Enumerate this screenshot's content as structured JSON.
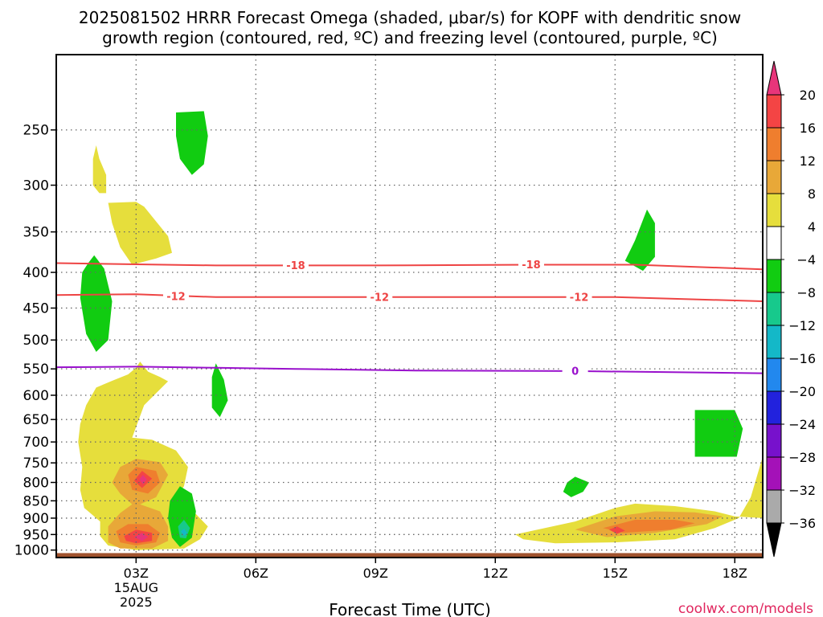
{
  "chart_data": {
    "type": "heatmap",
    "title_line1": "2025081502 HRRR Forecast Omega (shaded, μbar/s) for KOPF with dendritic snow",
    "title_line2": "growth region (contoured, red, ºC) and freezing level (contoured, purple, ºC)",
    "xlabel": "Forecast Time (UTC)",
    "ylabel": "",
    "x_ticks": [
      "03Z",
      "06Z",
      "09Z",
      "12Z",
      "15Z",
      "18Z"
    ],
    "date_label": [
      "15AUG",
      "2025"
    ],
    "xlim_hours_utc": [
      1.0,
      18.7
    ],
    "y_ticks": [
      250,
      300,
      350,
      400,
      450,
      500,
      550,
      600,
      650,
      700,
      750,
      800,
      850,
      900,
      950,
      1000
    ],
    "ylim_hpa": [
      1025,
      195
    ],
    "y_scale": "log pressure",
    "grid": true,
    "credit": "coolwx.com/models",
    "colorbar": {
      "labels": [
        "20",
        "16",
        "12",
        "8",
        "4",
        "−4",
        "−8",
        "−12",
        "−16",
        "−20",
        "−24",
        "−28",
        "−32",
        "−36"
      ],
      "colors": [
        "#e8357a",
        "#f44444",
        "#ef7e2e",
        "#e8a838",
        "#e6de3c",
        "#ffffff",
        "#11cc11",
        "#17c98c",
        "#14b8c8",
        "#2288ee",
        "#2222dd",
        "#7711cc",
        "#a411b8",
        "#aaaaaa",
        "#000000"
      ]
    },
    "contours": [
      {
        "name": "-18",
        "color": "#ee4444",
        "points": [
          [
            1.0,
            388
          ],
          [
            5,
            391
          ],
          [
            9,
            391
          ],
          [
            13,
            390
          ],
          [
            15.5,
            390
          ],
          [
            18.7,
            396
          ]
        ],
        "labels": [
          [
            7.0,
            391
          ],
          [
            12.9,
            390
          ]
        ]
      },
      {
        "name": "-12",
        "color": "#ee4444",
        "points": [
          [
            1.0,
            431
          ],
          [
            3,
            430
          ],
          [
            5,
            434
          ],
          [
            9,
            434
          ],
          [
            12,
            434
          ],
          [
            15,
            434
          ],
          [
            18.7,
            440
          ]
        ],
        "labels": [
          [
            4.0,
            433
          ],
          [
            9.1,
            434
          ],
          [
            14.1,
            434
          ]
        ]
      },
      {
        "name": "0",
        "color": "#9911cc",
        "points": [
          [
            1.0,
            547
          ],
          [
            3,
            546
          ],
          [
            5,
            548
          ],
          [
            7,
            550
          ],
          [
            10,
            553
          ],
          [
            14,
            554
          ],
          [
            18.7,
            558
          ]
        ],
        "labels": [
          [
            14.0,
            554
          ]
        ]
      }
    ],
    "omega_regions": [
      {
        "name": "omega-4-to-8-upper",
        "range": "4 to 8",
        "color": "#e6de3c",
        "points": [
          [
            1.92,
            275
          ],
          [
            2.0,
            263
          ],
          [
            2.08,
            275
          ],
          [
            2.25,
            290
          ],
          [
            2.25,
            308
          ],
          [
            2.08,
            308
          ],
          [
            1.92,
            300
          ]
        ]
      },
      {
        "name": "omega-4-to-8-mid",
        "range": "4 to 8",
        "color": "#e6de3c",
        "points": [
          [
            2.3,
            318
          ],
          [
            3.0,
            317
          ],
          [
            3.2,
            322
          ],
          [
            3.8,
            355
          ],
          [
            3.9,
            375
          ],
          [
            3.5,
            382
          ],
          [
            2.9,
            390
          ],
          [
            2.6,
            368
          ],
          [
            2.4,
            340
          ]
        ]
      },
      {
        "name": "omega-4-to-8-low-left",
        "range": "4 to 8",
        "color": "#e6de3c",
        "points": [
          [
            1.75,
            620
          ],
          [
            2.0,
            585
          ],
          [
            2.4,
            572
          ],
          [
            2.8,
            560
          ],
          [
            3.0,
            548
          ],
          [
            3.1,
            537
          ],
          [
            3.3,
            555
          ],
          [
            3.6,
            565
          ],
          [
            3.8,
            573
          ],
          [
            3.2,
            620
          ],
          [
            2.9,
            690
          ],
          [
            3.4,
            695
          ],
          [
            4.0,
            720
          ],
          [
            4.3,
            760
          ],
          [
            4.2,
            810
          ],
          [
            3.9,
            860
          ],
          [
            4.5,
            888
          ],
          [
            4.8,
            925
          ],
          [
            4.6,
            965
          ],
          [
            4.2,
            995
          ],
          [
            3.0,
            1000
          ],
          [
            2.3,
            985
          ],
          [
            2.1,
            955
          ],
          [
            2.1,
            910
          ],
          [
            1.7,
            870
          ],
          [
            1.6,
            820
          ],
          [
            1.65,
            760
          ],
          [
            1.55,
            700
          ],
          [
            1.6,
            660
          ]
        ]
      },
      {
        "name": "omega-4-to-8-low-right",
        "range": "4 to 8",
        "color": "#e6de3c",
        "points": [
          [
            12.5,
            950
          ],
          [
            14.0,
            910
          ],
          [
            15.0,
            870
          ],
          [
            15.5,
            858
          ],
          [
            16.5,
            865
          ],
          [
            17.5,
            880
          ],
          [
            18.0,
            895
          ],
          [
            18.7,
            900
          ],
          [
            18.7,
            860
          ],
          [
            18.7,
            735
          ],
          [
            18.4,
            840
          ],
          [
            18.1,
            900
          ],
          [
            17.5,
            930
          ],
          [
            16.5,
            965
          ],
          [
            15.0,
            975
          ],
          [
            13.5,
            978
          ],
          [
            12.7,
            965
          ]
        ]
      },
      {
        "name": "omega-8-to-12-low-left",
        "range": "8 to 12",
        "color": "#e8a838",
        "points": [
          [
            2.6,
            760
          ],
          [
            3.0,
            740
          ],
          [
            3.6,
            748
          ],
          [
            3.8,
            780
          ],
          [
            3.5,
            840
          ],
          [
            3.1,
            860
          ],
          [
            3.6,
            880
          ],
          [
            3.8,
            925
          ],
          [
            3.8,
            970
          ],
          [
            3.4,
            995
          ],
          [
            2.6,
            995
          ],
          [
            2.3,
            975
          ],
          [
            2.3,
            925
          ],
          [
            2.6,
            885
          ],
          [
            2.9,
            860
          ],
          [
            2.6,
            830
          ],
          [
            2.4,
            800
          ]
        ]
      },
      {
        "name": "omega-8-to-12-low-right",
        "range": "8 to 12",
        "color": "#e8a838",
        "points": [
          [
            14.0,
            935
          ],
          [
            15.0,
            895
          ],
          [
            16.0,
            880
          ],
          [
            17.0,
            883
          ],
          [
            17.7,
            895
          ],
          [
            17.3,
            918
          ],
          [
            16.0,
            945
          ],
          [
            14.8,
            958
          ]
        ]
      },
      {
        "name": "omega-12-to-16-left-upper",
        "range": "12 to 16",
        "color": "#ef7e2e",
        "points": [
          [
            2.8,
            780
          ],
          [
            3.0,
            760
          ],
          [
            3.5,
            770
          ],
          [
            3.6,
            800
          ],
          [
            3.3,
            830
          ],
          [
            2.9,
            820
          ]
        ]
      },
      {
        "name": "omega-12-to-16-left-lower",
        "range": "12 to 16",
        "color": "#ef7e2e",
        "points": [
          [
            2.5,
            940
          ],
          [
            2.8,
            918
          ],
          [
            3.3,
            918
          ],
          [
            3.6,
            945
          ],
          [
            3.5,
            975
          ],
          [
            3.0,
            985
          ],
          [
            2.6,
            975
          ]
        ]
      },
      {
        "name": "omega-12-to-16-right",
        "range": "12 to 16",
        "color": "#ef7e2e",
        "points": [
          [
            14.7,
            930
          ],
          [
            15.5,
            905
          ],
          [
            16.5,
            905
          ],
          [
            17.0,
            915
          ],
          [
            16.4,
            935
          ],
          [
            15.2,
            945
          ]
        ]
      },
      {
        "name": "omega-16-to-20-left-upper",
        "range": "16 to 20",
        "color": "#f44444",
        "points": [
          [
            2.95,
            795
          ],
          [
            3.15,
            770
          ],
          [
            3.4,
            790
          ],
          [
            3.15,
            815
          ]
        ]
      },
      {
        "name": "omega-16-to-20-left-lower",
        "range": "16 to 20",
        "color": "#f44444",
        "points": [
          [
            2.7,
            955
          ],
          [
            3.0,
            935
          ],
          [
            3.4,
            945
          ],
          [
            3.4,
            970
          ],
          [
            3.0,
            978
          ],
          [
            2.75,
            970
          ]
        ]
      },
      {
        "name": "omega-16-to-20-right",
        "range": "16 to 20",
        "color": "#f44444",
        "points": [
          [
            14.85,
            935
          ],
          [
            15.05,
            925
          ],
          [
            15.25,
            938
          ],
          [
            15.05,
            948
          ]
        ]
      },
      {
        "name": "omega-over-20-left-upper",
        "range": "> 20",
        "color": "#e8357a",
        "points": [
          [
            3.08,
            792
          ],
          [
            3.17,
            780
          ],
          [
            3.27,
            792
          ],
          [
            3.17,
            805
          ]
        ]
      },
      {
        "name": "omega-over-20-left-lower",
        "range": "> 20",
        "color": "#e8357a",
        "points": [
          [
            2.95,
            958
          ],
          [
            3.15,
            945
          ],
          [
            3.3,
            958
          ],
          [
            3.15,
            970
          ]
        ]
      },
      {
        "name": "omega-minus-4-to-minus-8-top",
        "range": "-4 to -8",
        "color": "#11cc11",
        "points": [
          [
            4.0,
            236
          ],
          [
            4.7,
            235
          ],
          [
            4.8,
            255
          ],
          [
            4.7,
            280
          ],
          [
            4.4,
            290
          ],
          [
            4.1,
            275
          ],
          [
            4.0,
            255
          ]
        ]
      },
      {
        "name": "omega-minus-4-to-minus-8-upper-left",
        "range": "-4 to -8",
        "color": "#11cc11",
        "points": [
          [
            1.8,
            388
          ],
          [
            1.95,
            378
          ],
          [
            2.2,
            395
          ],
          [
            2.4,
            440
          ],
          [
            2.3,
            500
          ],
          [
            2.0,
            520
          ],
          [
            1.75,
            490
          ],
          [
            1.6,
            435
          ],
          [
            1.65,
            400
          ]
        ]
      },
      {
        "name": "omega-minus-4-to-minus-8-mid",
        "range": "-4 to -8",
        "color": "#11cc11",
        "points": [
          [
            4.9,
            565
          ],
          [
            5.0,
            540
          ],
          [
            5.2,
            570
          ],
          [
            5.3,
            610
          ],
          [
            5.1,
            645
          ],
          [
            4.9,
            625
          ],
          [
            4.9,
            590
          ]
        ]
      },
      {
        "name": "omega-minus-4-to-minus-8-low-left",
        "range": "-4 to -8",
        "color": "#11cc11",
        "points": [
          [
            3.85,
            850
          ],
          [
            4.1,
            810
          ],
          [
            4.4,
            830
          ],
          [
            4.5,
            880
          ],
          [
            4.4,
            960
          ],
          [
            4.1,
            990
          ],
          [
            3.9,
            960
          ],
          [
            3.8,
            900
          ]
        ]
      },
      {
        "name": "omega-minus-4-to-minus-8-right-upper",
        "range": "-4 to -8",
        "color": "#11cc11",
        "points": [
          [
            15.5,
            360
          ],
          [
            15.8,
            325
          ],
          [
            16.0,
            340
          ],
          [
            16.0,
            380
          ],
          [
            15.7,
            398
          ],
          [
            15.25,
            385
          ],
          [
            15.4,
            370
          ]
        ]
      },
      {
        "name": "omega-minus-4-to-minus-8-right-low",
        "range": "-4 to -8",
        "color": "#11cc11",
        "points": [
          [
            13.8,
            800
          ],
          [
            14.0,
            785
          ],
          [
            14.35,
            800
          ],
          [
            14.2,
            825
          ],
          [
            13.9,
            840
          ],
          [
            13.7,
            825
          ]
        ]
      },
      {
        "name": "omega-minus-4-to-minus-8-right-box",
        "range": "-4 to -8",
        "color": "#11cc11",
        "points": [
          [
            17.0,
            630
          ],
          [
            18.0,
            630
          ],
          [
            18.2,
            670
          ],
          [
            18.05,
            735
          ],
          [
            17.0,
            735
          ]
        ]
      },
      {
        "name": "omega-minus-8-to-minus-12-low-left",
        "range": "-8 to -12",
        "color": "#17c98c",
        "points": [
          [
            4.05,
            925
          ],
          [
            4.2,
            905
          ],
          [
            4.35,
            930
          ],
          [
            4.25,
            962
          ],
          [
            4.1,
            960
          ]
        ]
      },
      {
        "name": "omega-minus-12-to-minus-16-low-left",
        "range": "-12 to -16",
        "color": "#14b8c8",
        "points": [
          [
            4.12,
            940
          ],
          [
            4.2,
            932
          ],
          [
            4.28,
            945
          ],
          [
            4.2,
            955
          ]
        ]
      }
    ],
    "ground": {
      "color": "#a0522d",
      "from_hpa": 1025,
      "to_hpa": 1010
    }
  }
}
